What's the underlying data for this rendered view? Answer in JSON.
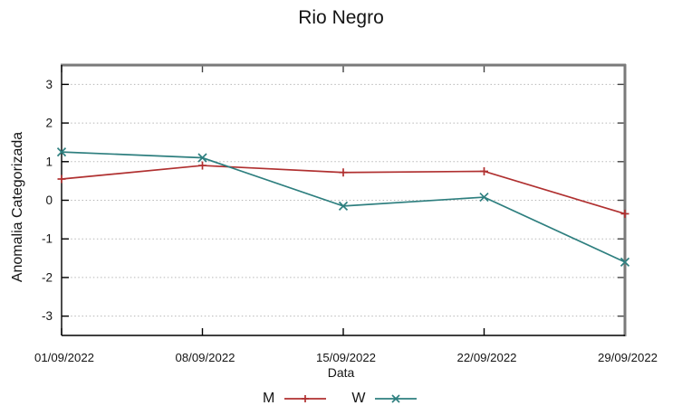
{
  "chart_data": {
    "type": "line",
    "title": "Rio Negro",
    "xlabel": "Data",
    "ylabel": "Anomalia Categorizada",
    "categories": [
      "01/09/2022",
      "08/09/2022",
      "15/09/2022",
      "22/09/2022",
      "29/09/2022"
    ],
    "ylim": [
      -3.5,
      3.5
    ],
    "yticks": [
      3,
      2,
      1,
      0,
      -1,
      -2,
      -3
    ],
    "grid": true,
    "legend_position": "bottom-center",
    "series": [
      {
        "name": "M",
        "color": "#b03030",
        "marker": "plus",
        "values": [
          0.55,
          0.9,
          0.72,
          0.75,
          -0.35
        ]
      },
      {
        "name": "W",
        "color": "#2e7f7f",
        "marker": "cross",
        "values": [
          1.25,
          1.1,
          -0.15,
          0.08,
          -1.6
        ]
      }
    ]
  },
  "colors": {
    "background": "#ffffff",
    "grid": "#b8b8b8",
    "axis": "#000000",
    "border_top_right": "#7a7a7a",
    "text": "#141414"
  }
}
